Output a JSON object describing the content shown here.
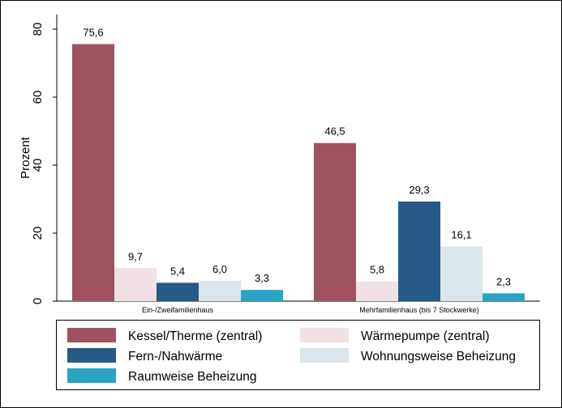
{
  "chart_data": {
    "type": "bar",
    "ylabel": "Prozent",
    "ylim": [
      0,
      80
    ],
    "yticks": [
      0,
      20,
      40,
      60,
      80
    ],
    "grid": false,
    "legend_position": "bottom",
    "categories": [
      "Ein-/Zweifamilienhaus",
      "Mehrfamilienhaus (bis 7 Stockwerke)"
    ],
    "series": [
      {
        "name": "Kessel/Therme (zentral)",
        "color": "#9e525f",
        "values": [
          75.6,
          46.5
        ],
        "labels": [
          "75,6",
          "46,5"
        ]
      },
      {
        "name": "Wärmepumpe (zentral)",
        "color": "#f2e1e4",
        "values": [
          9.7,
          5.8
        ],
        "labels": [
          "9,7",
          "5,8"
        ]
      },
      {
        "name": "Fern-/Nahwärme",
        "color": "#275a86",
        "values": [
          5.4,
          29.3
        ],
        "labels": [
          "5,4",
          "29,3"
        ]
      },
      {
        "name": "Wohnungsweise Beheizung",
        "color": "#dbe5ec",
        "values": [
          6.0,
          16.1
        ],
        "labels": [
          "6,0",
          "16,1"
        ]
      },
      {
        "name": "Raumweise Beheizung",
        "color": "#2aa4c4",
        "values": [
          3.3,
          2.3
        ],
        "labels": [
          "3,3",
          "2,3"
        ]
      }
    ]
  }
}
